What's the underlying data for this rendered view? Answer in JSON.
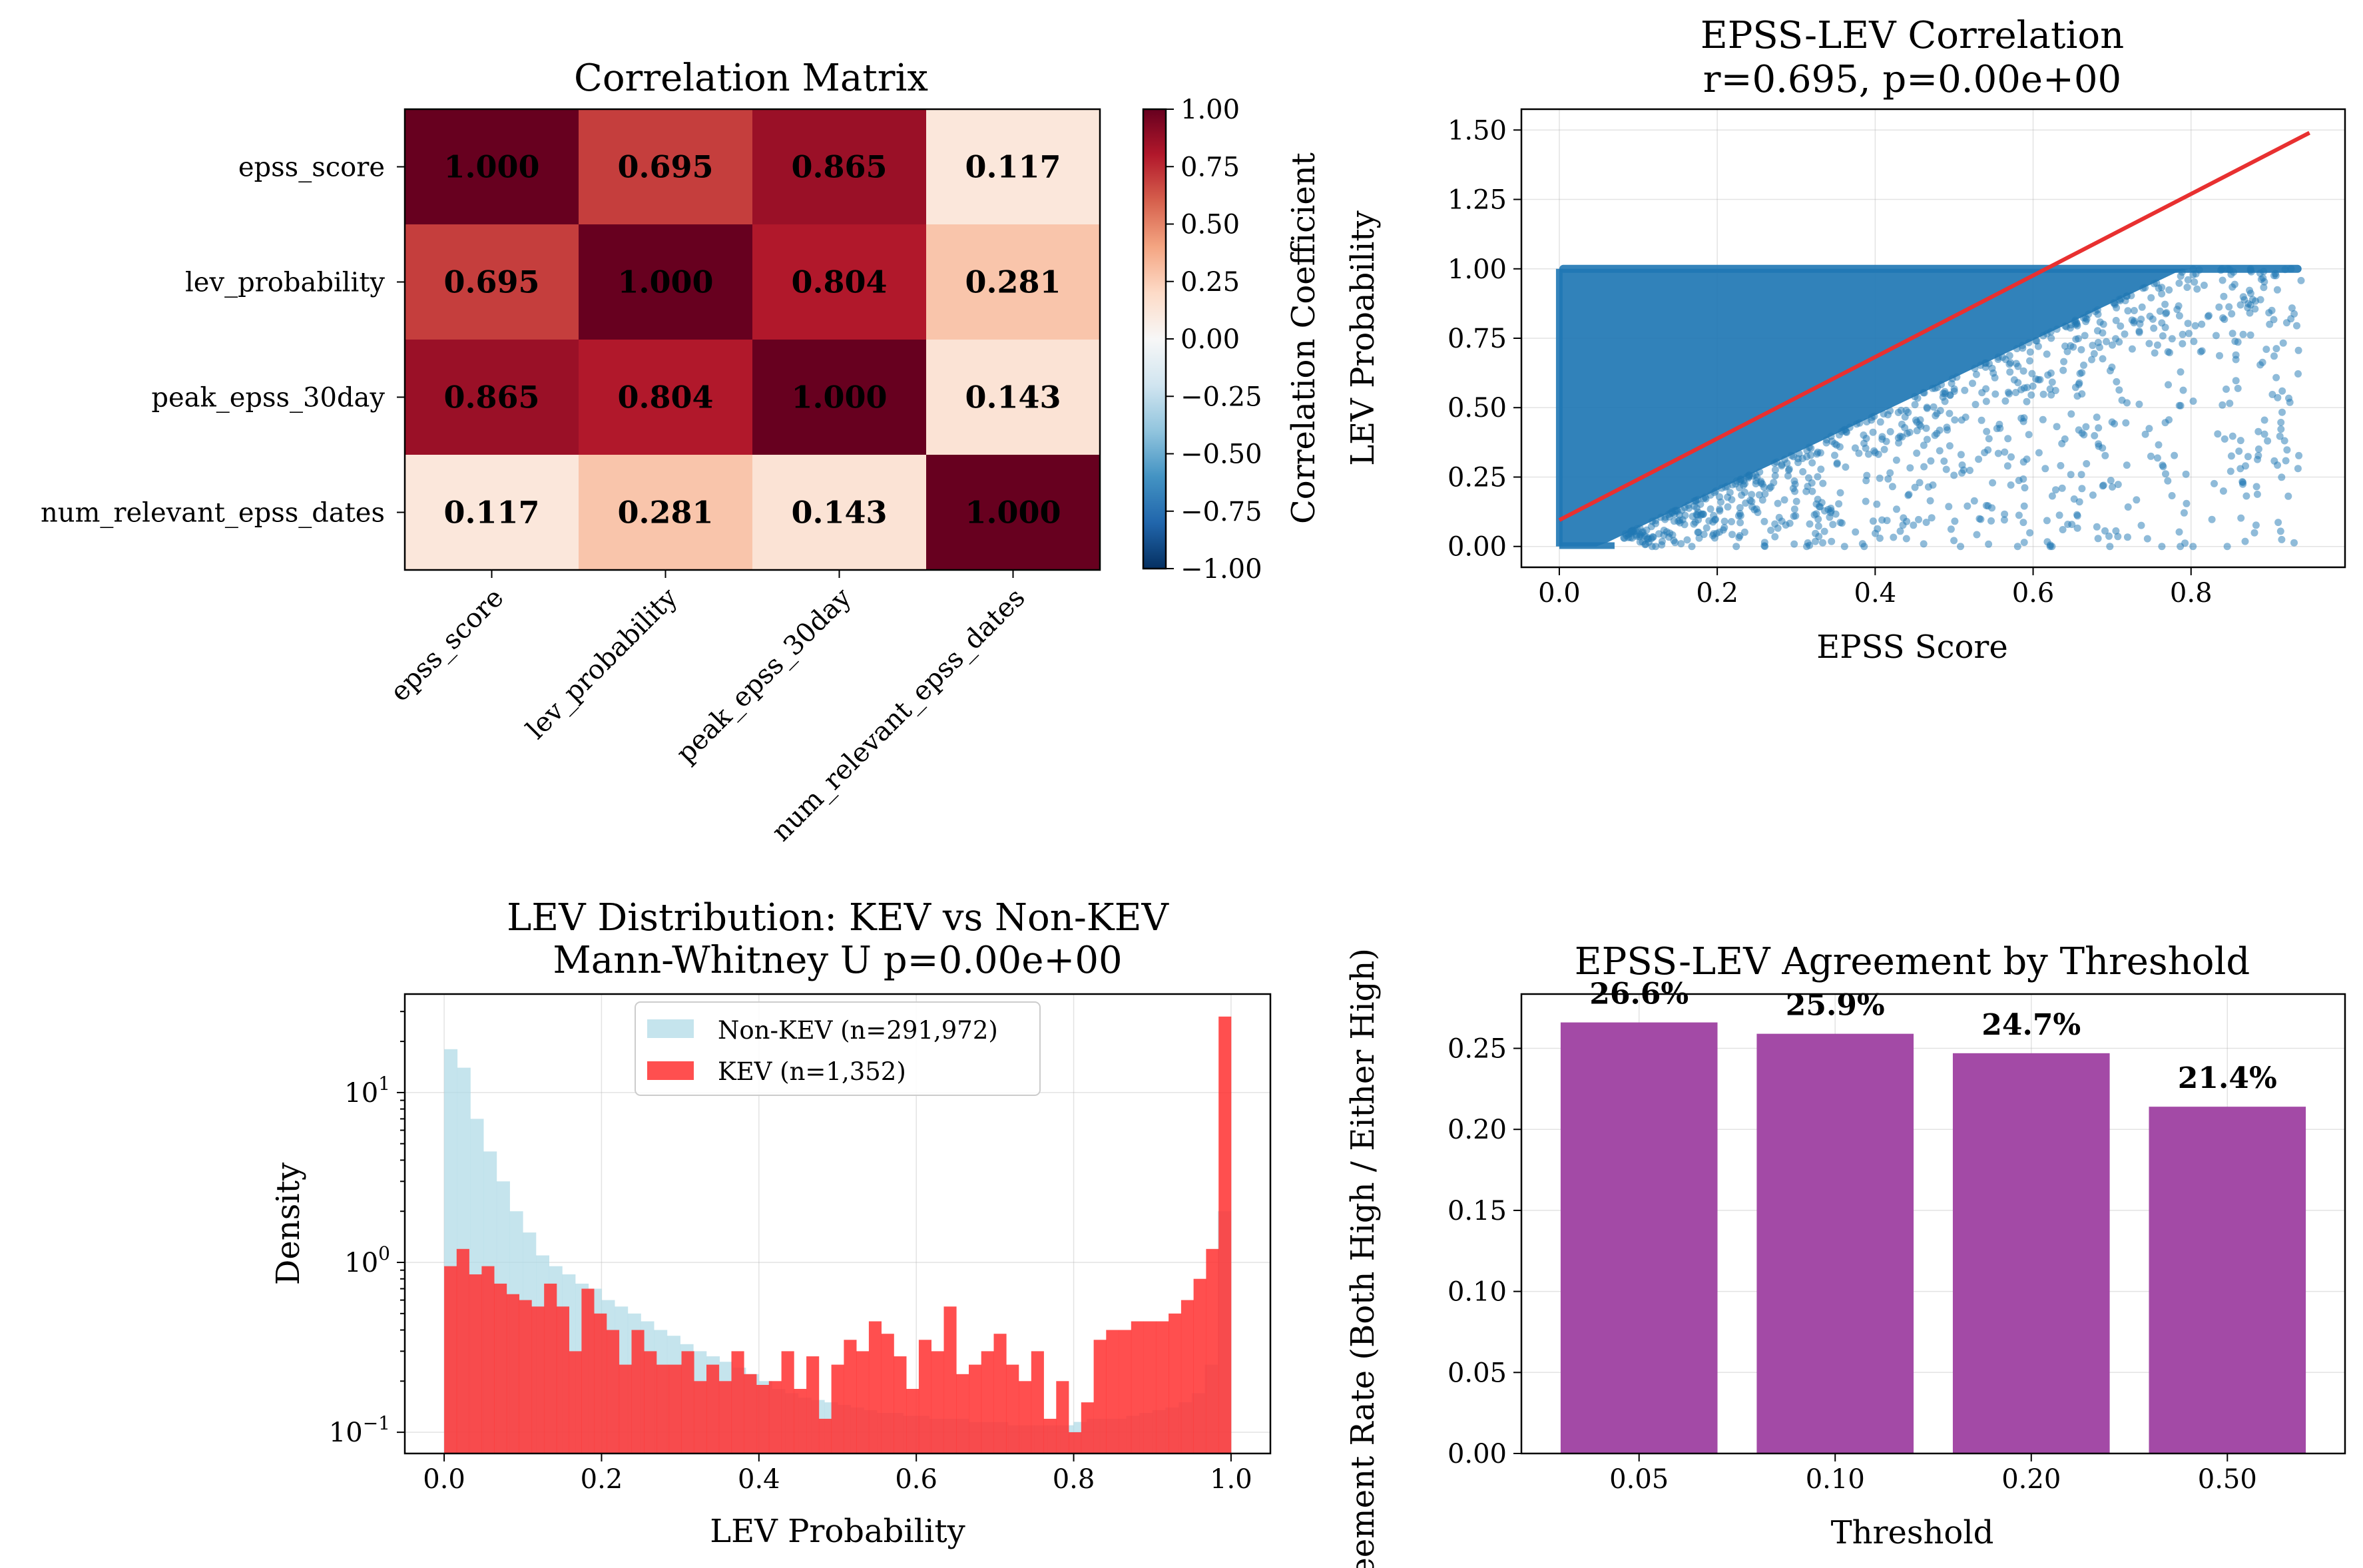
{
  "chart_data": [
    {
      "type": "heatmap",
      "title": "Correlation Matrix",
      "labels": [
        "epss_score",
        "lev_probability",
        "peak_epss_30day",
        "num_relevant_epss_dates"
      ],
      "matrix": [
        [
          1.0,
          0.695,
          0.865,
          0.117
        ],
        [
          0.695,
          1.0,
          0.804,
          0.281
        ],
        [
          0.865,
          0.804,
          1.0,
          0.143
        ],
        [
          0.117,
          0.281,
          0.143,
          1.0
        ]
      ],
      "cell_labels": [
        [
          "1.000",
          "0.695",
          "0.865",
          "0.117"
        ],
        [
          "0.695",
          "1.000",
          "0.804",
          "0.281"
        ],
        [
          "0.865",
          "0.804",
          "1.000",
          "0.143"
        ],
        [
          "0.117",
          "0.281",
          "0.143",
          "1.000"
        ]
      ],
      "colormap": "RdBu_r",
      "colorbar": {
        "label": "Correlation Coefficient",
        "range": [
          -1,
          1
        ],
        "ticks": [
          1.0,
          0.75,
          0.5,
          0.25,
          0.0,
          -0.25,
          -0.5,
          -0.75,
          -1.0
        ],
        "tick_labels": [
          "1.00",
          "0.75",
          "0.50",
          "0.25",
          "0.00",
          "−0.25",
          "−0.50",
          "−0.75",
          "−1.00"
        ]
      }
    },
    {
      "type": "scatter",
      "title_line1": "EPSS-LEV Correlation",
      "title_line2": "r=0.695, p=0.00e+00",
      "xlabel": "EPSS Score",
      "ylabel": "LEV Probability",
      "xlim": [
        -0.048,
        0.995
      ],
      "ylim": [
        -0.075,
        1.575
      ],
      "xticks": [
        0.0,
        0.2,
        0.4,
        0.6,
        0.8
      ],
      "xtick_labels": [
        "0.0",
        "0.2",
        "0.4",
        "0.6",
        "0.8"
      ],
      "yticks": [
        0.0,
        0.25,
        0.5,
        0.75,
        1.0,
        1.25,
        1.5
      ],
      "ytick_labels": [
        "0.00",
        "0.25",
        "0.50",
        "0.75",
        "1.00",
        "1.25",
        "1.50"
      ],
      "grid": true,
      "point_color": "#1f77b4",
      "fit_line": {
        "x": [
          0.0,
          0.95
        ],
        "y": [
          0.095,
          1.49
        ],
        "color": "#e83030"
      }
    },
    {
      "type": "histogram",
      "title_line1": "LEV Distribution: KEV vs Non-KEV",
      "title_line2": "Mann-Whitney U p=0.00e+00",
      "xlabel": "LEV Probability",
      "ylabel": "Density",
      "yscale": "log",
      "xlim": [
        -0.05,
        1.05
      ],
      "ylim": [
        0.075,
        38
      ],
      "xticks": [
        0.0,
        0.2,
        0.4,
        0.6,
        0.8,
        1.0
      ],
      "xtick_labels": [
        "0.0",
        "0.2",
        "0.4",
        "0.6",
        "0.8",
        "1.0"
      ],
      "ytick_base": "10",
      "yticks": [
        0.1,
        1,
        10
      ],
      "ytick_exponents": [
        "−1",
        "0",
        "1"
      ],
      "grid": true,
      "legend_position": "upper center",
      "bin_width": 0.02,
      "series": [
        {
          "name": "Non-KEV (n=291,972)",
          "color": "#add8e6",
          "density": [
            18,
            14,
            7,
            4.5,
            3,
            2,
            1.5,
            1.1,
            0.95,
            0.85,
            0.75,
            0.7,
            0.6,
            0.55,
            0.5,
            0.45,
            0.4,
            0.37,
            0.33,
            0.3,
            0.28,
            0.26,
            0.24,
            0.22,
            0.2,
            0.18,
            0.17,
            0.16,
            0.155,
            0.15,
            0.145,
            0.14,
            0.135,
            0.13,
            0.13,
            0.125,
            0.125,
            0.12,
            0.12,
            0.12,
            0.115,
            0.115,
            0.115,
            0.11,
            0.11,
            0.11,
            0.11,
            0.11,
            0.115,
            0.12,
            0.12,
            0.12,
            0.125,
            0.13,
            0.135,
            0.14,
            0.15,
            0.17,
            0.25,
            2.0
          ]
        },
        {
          "name": "KEV (n=1,352)",
          "color": "#ff3030",
          "density": [
            0.95,
            1.2,
            0.85,
            0.95,
            0.75,
            0.65,
            0.6,
            0.55,
            0.75,
            0.55,
            0.3,
            0.7,
            0.5,
            0.4,
            0.25,
            0.4,
            0.3,
            0.25,
            0.25,
            0.3,
            0.2,
            0.25,
            0.2,
            0.3,
            0.22,
            0.19,
            0.2,
            0.3,
            0.18,
            0.28,
            0.12,
            0.25,
            0.35,
            0.3,
            0.45,
            0.38,
            0.28,
            0.18,
            0.35,
            0.3,
            0.55,
            0.22,
            0.25,
            0.3,
            0.38,
            0.25,
            0.2,
            0.3,
            0.12,
            0.2,
            0.1,
            0.15,
            0.35,
            0.4,
            0.4,
            0.45,
            0.45,
            0.45,
            0.5,
            0.6,
            0.8,
            1.2,
            28.0
          ]
        }
      ]
    },
    {
      "type": "bar",
      "title": "EPSS-LEV Agreement by Threshold",
      "xlabel": "Threshold",
      "ylabel": "Agreement Rate (Both High / Either High)",
      "categories": [
        "0.05",
        "0.10",
        "0.20",
        "0.50"
      ],
      "values": [
        0.266,
        0.259,
        0.247,
        0.214
      ],
      "value_labels": [
        "26.6%",
        "25.9%",
        "24.7%",
        "21.4%"
      ],
      "ylim": [
        0,
        0.2835
      ],
      "yticks": [
        0.0,
        0.05,
        0.1,
        0.15,
        0.2,
        0.25
      ],
      "ytick_labels": [
        "0.00",
        "0.05",
        "0.10",
        "0.15",
        "0.20",
        "0.25"
      ],
      "color": "#a34aa6",
      "grid": true
    }
  ]
}
